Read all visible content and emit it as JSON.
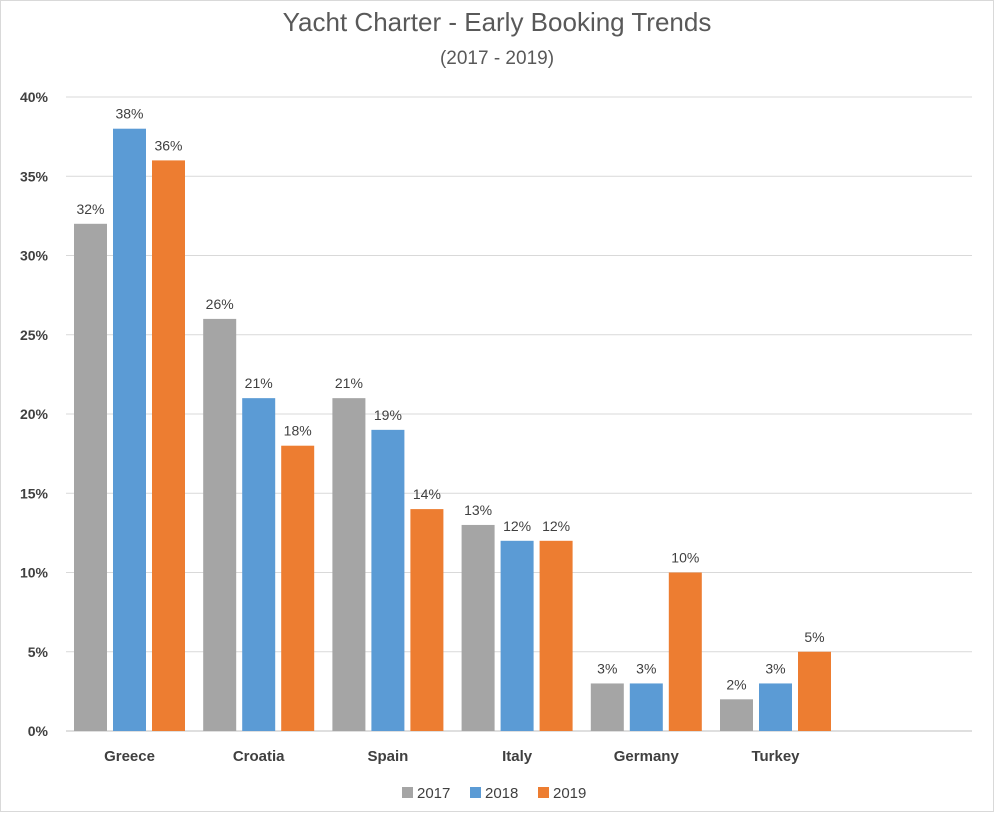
{
  "chart_data": {
    "type": "bar",
    "title": "Yacht Charter - Early Booking Trends",
    "subtitle": "(2017 - 2019)",
    "xlabel": "",
    "ylabel": "",
    "ylim": [
      0,
      40
    ],
    "yticks": [
      0,
      5,
      10,
      15,
      20,
      25,
      30,
      35,
      40
    ],
    "ytick_labels": [
      "0%",
      "5%",
      "10%",
      "15%",
      "20%",
      "25%",
      "30%",
      "35%",
      "40%"
    ],
    "grid": true,
    "legend_position": "bottom",
    "categories": [
      "Greece",
      "Croatia",
      "Spain",
      "Italy",
      "Germany",
      "Turkey"
    ],
    "series": [
      {
        "name": "2017",
        "color": "#a5a5a5",
        "values": [
          32,
          26,
          21,
          13,
          3,
          2
        ],
        "labels": [
          "32%",
          "26%",
          "21%",
          "13%",
          "3%",
          "2%"
        ]
      },
      {
        "name": "2018",
        "color": "#5b9bd5",
        "values": [
          38,
          21,
          19,
          12,
          3,
          3
        ],
        "labels": [
          "38%",
          "21%",
          "19%",
          "12%",
          "3%",
          "3%"
        ]
      },
      {
        "name": "2019",
        "color": "#ed7d31",
        "values": [
          36,
          18,
          14,
          12,
          10,
          5
        ],
        "labels": [
          "36%",
          "18%",
          "14%",
          "12%",
          "10%",
          "5%"
        ]
      }
    ]
  }
}
